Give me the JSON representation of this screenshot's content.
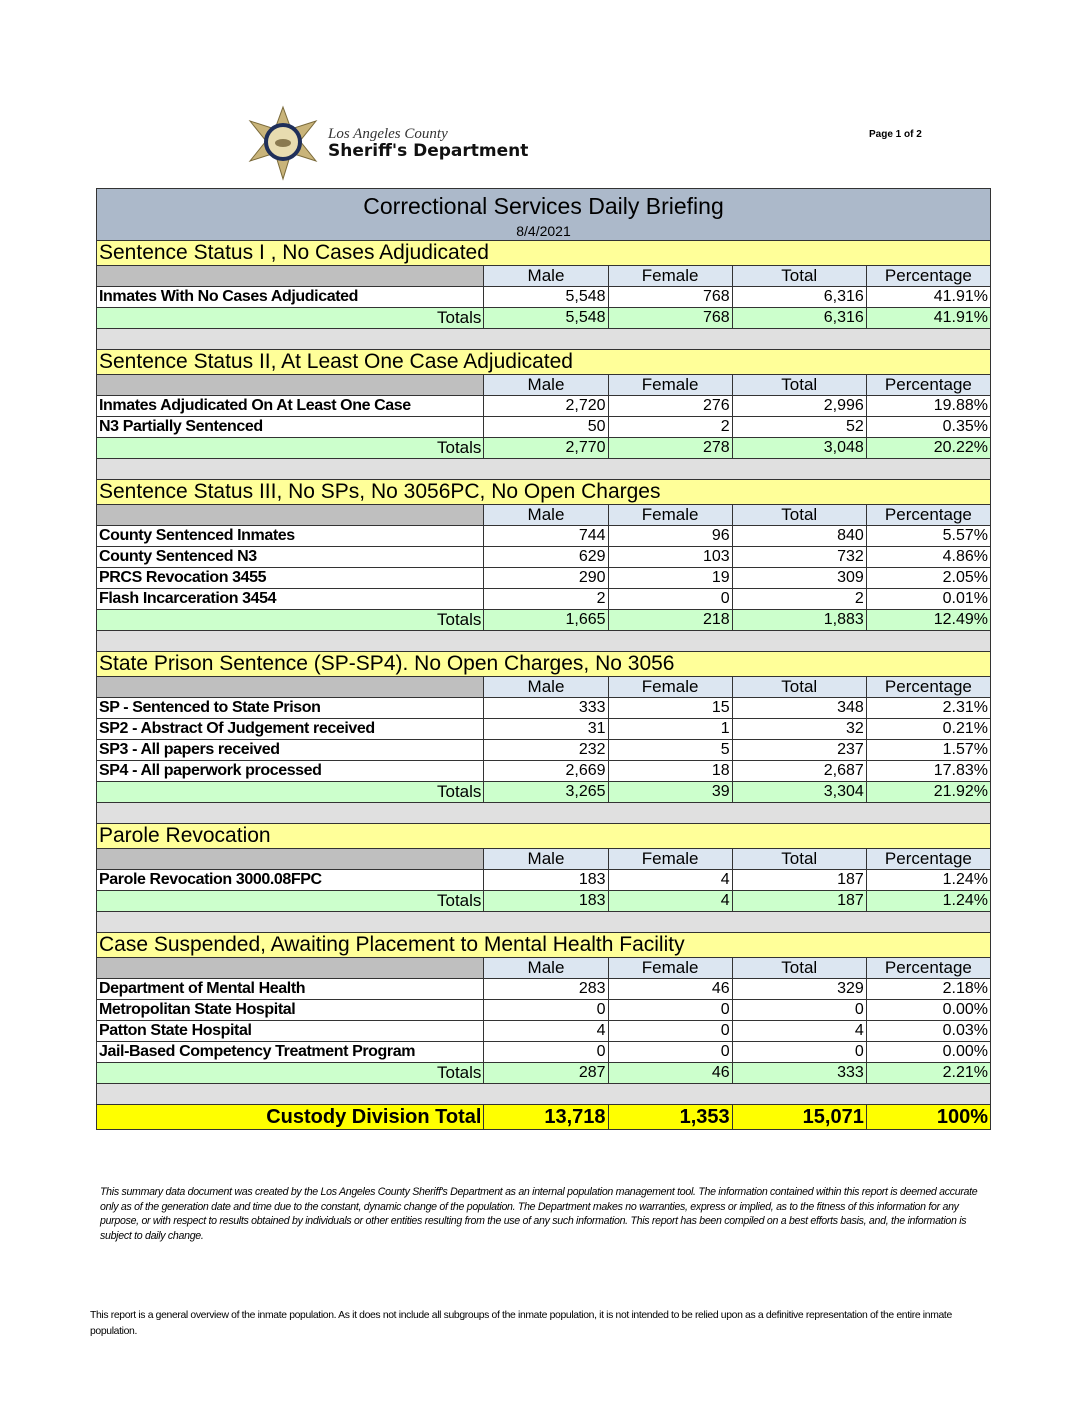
{
  "logo": {
    "line1": "Los Angeles County",
    "line2": "Sheriff's Department"
  },
  "page_label": "Page 1 of 2",
  "report": {
    "title": "Correctional Services Daily Briefing",
    "date": "8/4/2021"
  },
  "columns": [
    "Male",
    "Female",
    "Total",
    "Percentage"
  ],
  "totals_label": "Totals",
  "sections": [
    {
      "title": "Sentence Status I , No Cases Adjudicated",
      "rows": [
        [
          "Inmates With No Cases Adjudicated",
          "5,548",
          "768",
          "6,316",
          "41.91%"
        ]
      ],
      "totals": [
        "5,548",
        "768",
        "6,316",
        "41.91%"
      ]
    },
    {
      "title": "Sentence Status II, At Least One Case Adjudicated",
      "rows": [
        [
          "Inmates Adjudicated On At Least One Case",
          "2,720",
          "276",
          "2,996",
          "19.88%"
        ],
        [
          "N3 Partially Sentenced",
          "50",
          "2",
          "52",
          "0.35%"
        ]
      ],
      "totals": [
        "2,770",
        "278",
        "3,048",
        "20.22%"
      ]
    },
    {
      "title": "Sentence Status III, No SPs, No 3056PC, No Open Charges",
      "rows": [
        [
          "County Sentenced Inmates",
          "744",
          "96",
          "840",
          "5.57%"
        ],
        [
          "County Sentenced N3",
          "629",
          "103",
          "732",
          "4.86%"
        ],
        [
          "PRCS Revocation 3455",
          "290",
          "19",
          "309",
          "2.05%"
        ],
        [
          "Flash Incarceration 3454",
          "2",
          "0",
          "2",
          "0.01%"
        ]
      ],
      "totals": [
        "1,665",
        "218",
        "1,883",
        "12.49%"
      ]
    },
    {
      "title": "State Prison Sentence (SP-SP4). No Open Charges, No 3056",
      "rows": [
        [
          "SP - Sentenced to State Prison",
          "333",
          "15",
          "348",
          "2.31%"
        ],
        [
          "SP2 - Abstract Of Judgement received",
          "31",
          "1",
          "32",
          "0.21%"
        ],
        [
          "SP3 - All papers received",
          "232",
          "5",
          "237",
          "1.57%"
        ],
        [
          "SP4 - All paperwork processed",
          "2,669",
          "18",
          "2,687",
          "17.83%"
        ]
      ],
      "totals": [
        "3,265",
        "39",
        "3,304",
        "21.92%"
      ]
    },
    {
      "title": "Parole Revocation",
      "rows": [
        [
          "Parole Revocation 3000.08FPC",
          "183",
          "4",
          "187",
          "1.24%"
        ]
      ],
      "totals": [
        "183",
        "4",
        "187",
        "1.24%"
      ]
    },
    {
      "title": "Case Suspended, Awaiting Placement to Mental Health Facility",
      "rows": [
        [
          "Department of Mental Health",
          "283",
          "46",
          "329",
          "2.18%"
        ],
        [
          "Metropolitan State Hospital",
          "0",
          "0",
          "0",
          "0.00%"
        ],
        [
          "Patton State Hospital",
          "4",
          "0",
          "4",
          "0.03%"
        ],
        [
          "Jail-Based Competency Treatment Program",
          "0",
          "0",
          "0",
          "0.00%"
        ]
      ],
      "totals": [
        "287",
        "46",
        "333",
        "2.21%"
      ]
    }
  ],
  "grand_total": {
    "label": "Custody Division Total",
    "values": [
      "13,718",
      "1,353",
      "15,071",
      "100%"
    ]
  },
  "disclaimer": "This summary data document was created by the Los Angeles County Sheriff's Department as an internal population management tool.  The information contained within this report is deemed accurate only as of the generation date and time due to the constant, dynamic change of the population.  The Department makes no warranties, express or implied, as to the fitness of this information for any purpose, or with respect to results obtained by individuals or other entities resulting from the use of any such information.  This report has been compiled on a best efforts basis, and, the information is subject to daily change.",
  "footnote": "This report is a general overview of the inmate population.  As it does not include all subgroups of the inmate population, it is not intended to be relied upon as a definitive representation of the entire inmate population.",
  "colors": {
    "title_bg": "#acb9ca",
    "section_bg": "#ffff99",
    "totals_bg": "#ccffcc",
    "grand_bg": "#ffff00"
  }
}
